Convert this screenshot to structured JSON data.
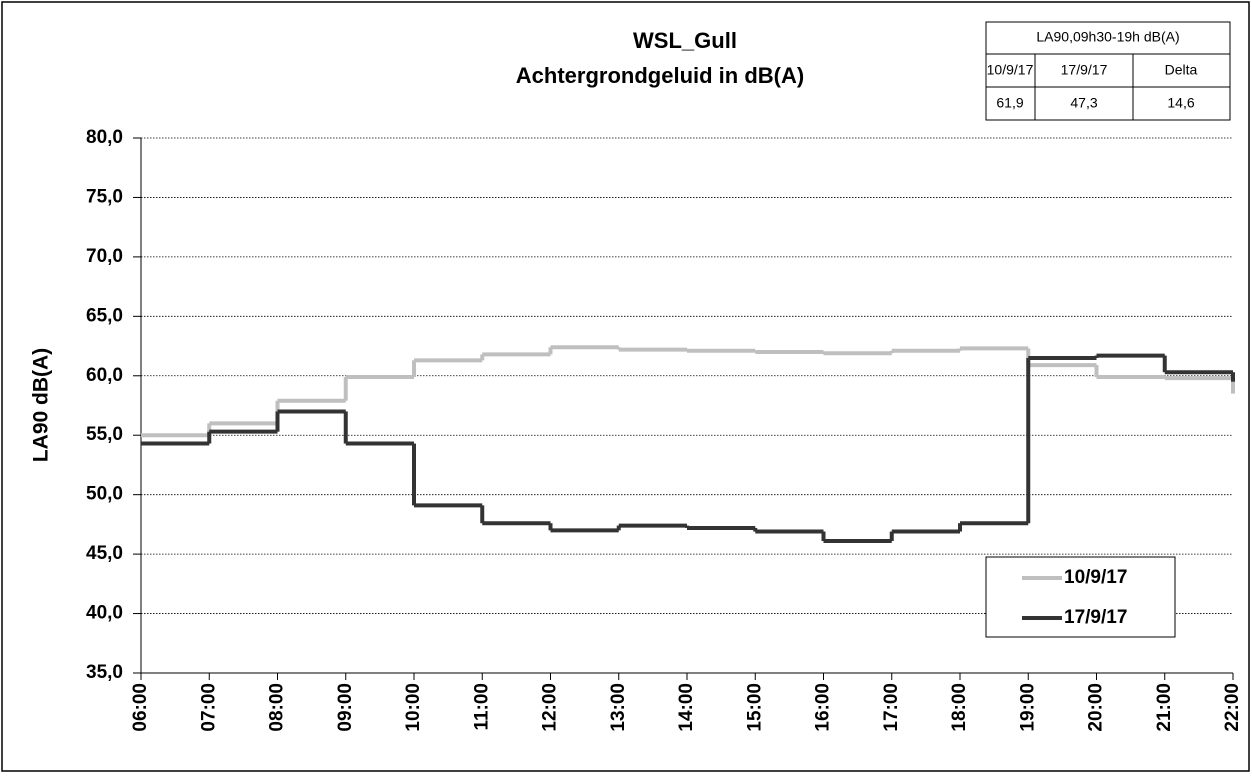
{
  "chart_data": {
    "type": "step-line",
    "title": "WSL_Gull",
    "subtitle": "Achtergrondgeluid  in dB(A)",
    "y_label": "LA90  dB(A)",
    "categories": [
      "06:00",
      "07:00",
      "08:00",
      "09:00",
      "10:00",
      "11:00",
      "12:00",
      "13:00",
      "14:00",
      "15:00",
      "16:00",
      "17:00",
      "18:00",
      "19:00",
      "20:00",
      "21:00",
      "22:00"
    ],
    "series": [
      {
        "name": "10/9/17",
        "color": "#bfbfbf",
        "values": [
          55.0,
          56.0,
          57.9,
          59.9,
          61.3,
          61.8,
          62.4,
          62.2,
          62.1,
          62.0,
          61.9,
          62.1,
          62.3,
          60.9,
          59.9,
          59.8,
          58.5
        ]
      },
      {
        "name": "17/9/17",
        "color": "#333333",
        "values": [
          54.3,
          55.3,
          57.0,
          54.3,
          49.1,
          47.6,
          47.0,
          47.4,
          47.2,
          46.9,
          46.1,
          46.9,
          47.6,
          61.5,
          61.7,
          60.3,
          59.5
        ]
      }
    ],
    "ylim": [
      35,
      80
    ],
    "yticks": [
      {
        "value": 35,
        "label": "35,0"
      },
      {
        "value": 40,
        "label": "40,0"
      },
      {
        "value": 45,
        "label": "45,0"
      },
      {
        "value": 50,
        "label": "50,0"
      },
      {
        "value": 55,
        "label": "55,0"
      },
      {
        "value": 60,
        "label": "60,0"
      },
      {
        "value": 65,
        "label": "65,0"
      },
      {
        "value": 70,
        "label": "70,0"
      },
      {
        "value": 75,
        "label": "75,0"
      },
      {
        "value": 80,
        "label": "80,0"
      }
    ],
    "grid": true,
    "legend": "lower right",
    "table": {
      "header": "LA90,09h30-19h dB(A)",
      "columns": [
        "10/9/17",
        "17/9/17",
        "Delta"
      ],
      "values": [
        "61,9",
        "47,3",
        "14,6"
      ]
    }
  }
}
